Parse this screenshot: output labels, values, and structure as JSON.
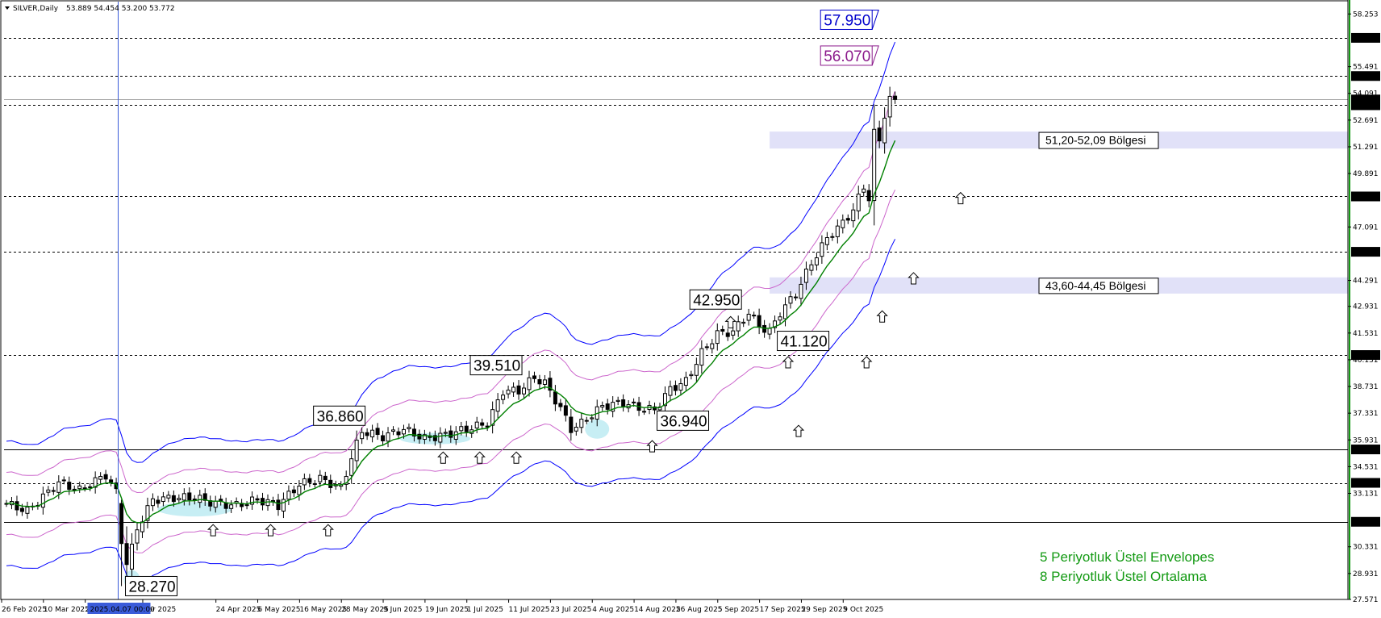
{
  "header": {
    "symbol": "SILVER,Daily",
    "ohlc": "53.889 54.454 53.200 53.772"
  },
  "colors": {
    "candle_up": "#ffffff",
    "candle_down": "#000000",
    "candle_outline": "#000000",
    "ema": "#008000",
    "envelope_inner": "#cc66cc",
    "envelope_outer": "#0000ff",
    "zone_fill": "#e1e1f8",
    "highlight_fill": "#b4e8f0",
    "legend_text": "#139a13",
    "callout_blue": "#0000cc",
    "callout_purple": "#8b1a8b"
  },
  "chart_data": {
    "type": "candlestick",
    "title": "",
    "y_range": [
      27.571,
      58.9
    ],
    "grid": false,
    "price_ticks": [
      {
        "value": 58.253,
        "label": "58.253"
      },
      {
        "value": 55.491,
        "label": "55.491"
      },
      {
        "value": 54.091,
        "label": "54.091"
      },
      {
        "value": 52.691,
        "label": "52.691"
      },
      {
        "value": 51.291,
        "label": "51.291"
      },
      {
        "value": 49.891,
        "label": "49.891"
      },
      {
        "value": 47.091,
        "label": "47.091"
      },
      {
        "value": 44.291,
        "label": "44.291"
      },
      {
        "value": 42.931,
        "label": "42.931"
      },
      {
        "value": 41.531,
        "label": "41.531"
      },
      {
        "value": 40.131,
        "label": "40.131"
      },
      {
        "value": 38.731,
        "label": "38.731"
      },
      {
        "value": 37.331,
        "label": "37.331"
      },
      {
        "value": 35.931,
        "label": "35.931"
      },
      {
        "value": 34.531,
        "label": "34.531"
      },
      {
        "value": 33.131,
        "label": "33.131"
      },
      {
        "value": 30.331,
        "label": "30.331"
      },
      {
        "value": 28.931,
        "label": "28.931"
      },
      {
        "value": 27.571,
        "label": "27.571"
      }
    ],
    "levels": [
      {
        "value": 57.0,
        "label": "57.000",
        "style": "dashed"
      },
      {
        "value": 55.0,
        "label": "55.000",
        "style": "dashed"
      },
      {
        "value": 53.772,
        "label": "53.772",
        "style": "gray"
      },
      {
        "value": 53.47,
        "label": "53.470",
        "style": "dashed"
      },
      {
        "value": 48.69,
        "label": "48.690",
        "style": "dashed"
      },
      {
        "value": 45.79,
        "label": "45.790",
        "style": "dashed"
      },
      {
        "value": 40.38,
        "label": "40.380",
        "style": "dashed"
      },
      {
        "value": 35.433,
        "label": "35.433",
        "style": "solid"
      },
      {
        "value": 33.68,
        "label": "33.680",
        "style": "dashed"
      },
      {
        "value": 31.64,
        "label": "31.640",
        "style": "solid"
      }
    ],
    "zones": [
      {
        "from": 51.2,
        "to": 52.09,
        "label": "51,20-52,09 Bölgesi"
      },
      {
        "from": 43.6,
        "to": 44.45,
        "label": "43,60-44,45 Bölgesi"
      }
    ],
    "date_ticks": [
      {
        "index": 0,
        "label": "26 Feb 2025"
      },
      {
        "index": 8,
        "label": "10 Mar 2025"
      },
      {
        "index": 16,
        "label": "20 Mar 2025"
      },
      {
        "index": 27,
        "label": "Apr 2025"
      },
      {
        "index": 41,
        "label": "24 Apr 2025"
      },
      {
        "index": 49,
        "label": "6 May 2025"
      },
      {
        "index": 57,
        "label": "16 May 2025"
      },
      {
        "index": 65,
        "label": "28 May 2025"
      },
      {
        "index": 73,
        "label": "9 Jun 2025"
      },
      {
        "index": 81,
        "label": "19 Jun 2025"
      },
      {
        "index": 89,
        "label": "1 Jul 2025"
      },
      {
        "index": 97,
        "label": "11 Jul 2025"
      },
      {
        "index": 105,
        "label": "23 Jul 2025"
      },
      {
        "index": 113,
        "label": "4 Aug 2025"
      },
      {
        "index": 121,
        "label": "14 Aug 2025"
      },
      {
        "index": 129,
        "label": "26 Aug 2025"
      },
      {
        "index": 137,
        "label": "5 Sep 2025"
      },
      {
        "index": 145,
        "label": "17 Sep 2025"
      },
      {
        "index": 153,
        "label": "29 Sep 2025"
      },
      {
        "index": 161,
        "label": "9 Oct 2025"
      }
    ],
    "crosshair": {
      "index": 21,
      "label": "2025.04.07 00:00"
    },
    "callouts": [
      {
        "text": "57.950",
        "value": 57.95,
        "index": 165,
        "color": "blue"
      },
      {
        "text": "56.070",
        "value": 56.07,
        "index": 165,
        "color": "purple"
      },
      {
        "text": "42.950",
        "value": 42.95,
        "index": 140,
        "color": "black"
      },
      {
        "text": "41.120",
        "value": 41.12,
        "index": 147,
        "color": "black"
      },
      {
        "text": "39.510",
        "value": 39.51,
        "index": 98,
        "color": "black"
      },
      {
        "text": "36.940",
        "value": 36.94,
        "index": 124,
        "color": "black"
      },
      {
        "text": "36.860",
        "value": 36.86,
        "index": 68,
        "color": "black"
      },
      {
        "text": "28.270",
        "value": 28.27,
        "index": 24,
        "color": "black"
      }
    ],
    "legend": [
      "5 Periyotluk Üstel Envelopes",
      "8 Periyotluk Üstel Ortalama"
    ],
    "series_description": "Daily OHLC candles with 8-period exponential moving average and 5-period exponential envelopes",
    "anchors": [
      [
        0,
        32.6
      ],
      [
        4,
        32.2
      ],
      [
        10,
        33.7
      ],
      [
        14,
        33.3
      ],
      [
        19,
        34.1
      ],
      [
        21,
        33.2
      ],
      [
        22,
        30.5
      ],
      [
        23,
        29.2
      ],
      [
        25,
        31.3
      ],
      [
        28,
        32.8
      ],
      [
        32,
        32.9
      ],
      [
        36,
        32.9
      ],
      [
        40,
        32.6
      ],
      [
        44,
        32.5
      ],
      [
        48,
        32.8
      ],
      [
        52,
        32.5
      ],
      [
        56,
        33.6
      ],
      [
        60,
        33.9
      ],
      [
        64,
        33.4
      ],
      [
        66,
        35.0
      ],
      [
        68,
        36.4
      ],
      [
        72,
        36.1
      ],
      [
        76,
        36.5
      ],
      [
        80,
        36.0
      ],
      [
        84,
        36.2
      ],
      [
        88,
        36.5
      ],
      [
        92,
        36.8
      ],
      [
        95,
        38.5
      ],
      [
        98,
        38.5
      ],
      [
        101,
        39.2
      ],
      [
        103,
        38.9
      ],
      [
        106,
        37.6
      ],
      [
        108,
        36.5
      ],
      [
        110,
        36.8
      ],
      [
        114,
        37.7
      ],
      [
        118,
        37.9
      ],
      [
        121,
        37.6
      ],
      [
        124,
        37.5
      ],
      [
        127,
        38.6
      ],
      [
        130,
        39.0
      ],
      [
        133,
        40.5
      ],
      [
        136,
        41.5
      ],
      [
        139,
        41.6
      ],
      [
        142,
        42.6
      ],
      [
        144,
        41.9
      ],
      [
        146,
        41.6
      ],
      [
        148,
        42.6
      ],
      [
        151,
        43.6
      ],
      [
        154,
        45.2
      ],
      [
        157,
        46.5
      ],
      [
        160,
        47.3
      ],
      [
        162,
        48.0
      ],
      [
        164,
        49.2
      ],
      [
        165,
        48.6
      ],
      [
        166,
        52.0
      ],
      [
        167,
        51.6
      ],
      [
        168,
        53.0
      ],
      [
        169,
        53.8
      ],
      [
        170,
        53.77
      ]
    ]
  }
}
